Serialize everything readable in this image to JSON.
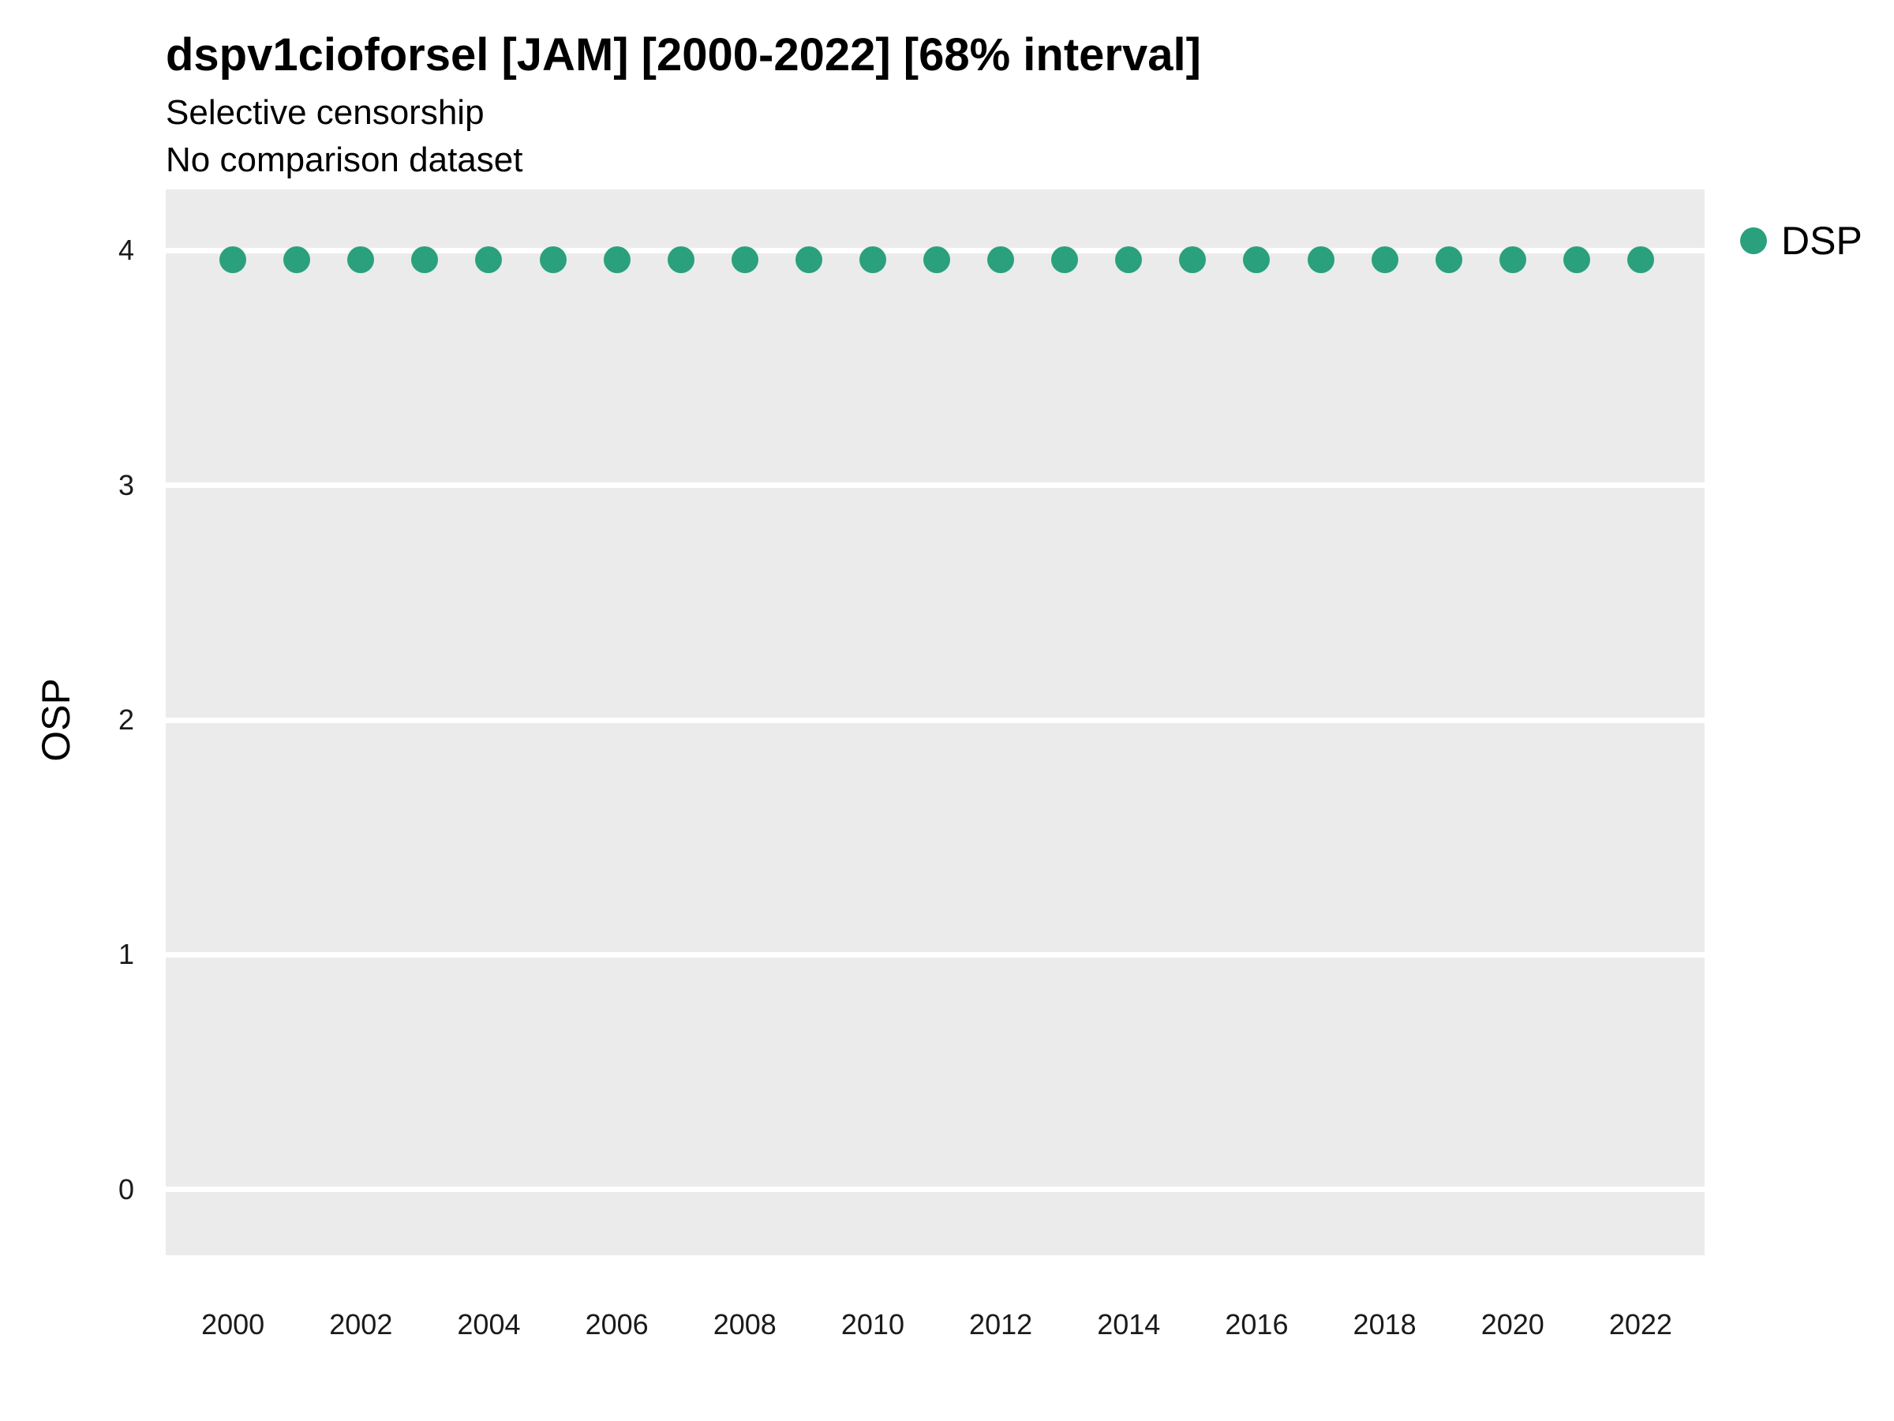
{
  "header": {
    "title": "dspv1cioforsel [JAM] [2000-2022] [68% interval]",
    "subtitle_line1": "Selective censorship",
    "subtitle_line2": "No comparison dataset"
  },
  "axes": {
    "y_title": "OSP",
    "x_title": ""
  },
  "legend": {
    "label": "DSP",
    "color": "#2aa17c"
  },
  "chart_data": {
    "type": "scatter",
    "title": "dspv1cioforsel [JAM] [2000-2022] [68% interval]",
    "subtitle": [
      "Selective censorship",
      "No comparison dataset"
    ],
    "xlabel": "",
    "ylabel": "OSP",
    "x": [
      2000,
      2001,
      2002,
      2003,
      2004,
      2005,
      2006,
      2007,
      2008,
      2009,
      2010,
      2011,
      2012,
      2013,
      2014,
      2015,
      2016,
      2017,
      2018,
      2019,
      2020,
      2021,
      2022
    ],
    "series": [
      {
        "name": "DSP",
        "color": "#2aa17c",
        "values": [
          3.96,
          3.96,
          3.96,
          3.96,
          3.96,
          3.96,
          3.96,
          3.96,
          3.96,
          3.96,
          3.96,
          3.96,
          3.96,
          3.96,
          3.96,
          3.96,
          3.96,
          3.96,
          3.96,
          3.96,
          3.96,
          3.96,
          3.96
        ]
      }
    ],
    "xticks": [
      2000,
      2002,
      2004,
      2006,
      2008,
      2010,
      2012,
      2014,
      2016,
      2018,
      2020,
      2022
    ],
    "yticks": [
      0,
      1,
      2,
      3,
      4
    ],
    "xlim": [
      1998.95,
      2023.0
    ],
    "ylim": [
      -0.28,
      4.26
    ],
    "panel_background": "#ebebeb",
    "gridline_color": "#ffffff",
    "grid": "major-horizontal",
    "legend_position": "right"
  }
}
